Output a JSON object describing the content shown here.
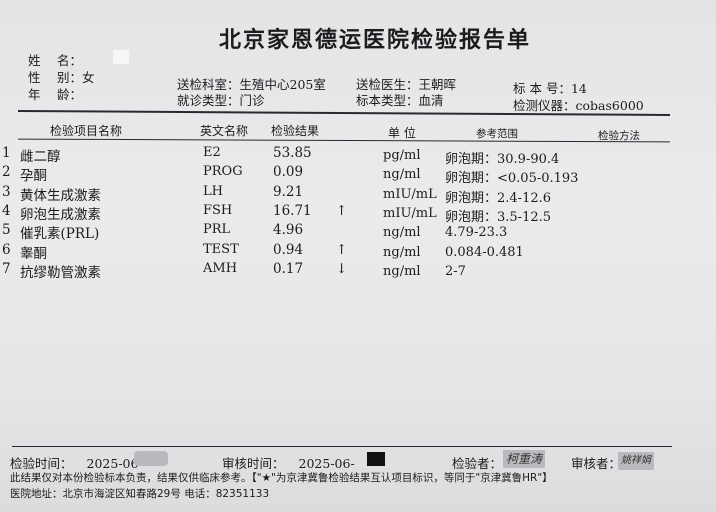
{
  "title": "北京家恩德运医院检验报告单",
  "patient": {
    "name_label": "姓　 名：",
    "name": "",
    "sex_label": "性　 别：",
    "sex": "女",
    "age_label": "年　 龄：",
    "age": ""
  },
  "order": {
    "dept_label": "送检科室：",
    "dept": "生殖中心205室",
    "visit_label": "就诊类型：",
    "visit": "门诊",
    "doctor_label": "送检医生：",
    "doctor": "王朝晖",
    "specimen_type_label": "标本类型：",
    "specimen_type": "血清",
    "specimen_no_label": "标 本 号：",
    "specimen_no": "14",
    "instrument_label": "检测仪器：",
    "instrument": "cobas6000"
  },
  "table": {
    "headers": {
      "name": "检验项目名称",
      "eng": "英文名称",
      "result": "检验结果",
      "unit": "单 位",
      "ref": "参考范围",
      "method": "检验方法"
    },
    "rows": [
      {
        "no": "1",
        "name": "雌二醇",
        "eng": "E2",
        "result": "53.85",
        "flag": "",
        "unit": "pg/ml",
        "ref": "卵泡期：30.9-90.4"
      },
      {
        "no": "2",
        "name": "孕酮",
        "eng": "PROG",
        "result": "0.09",
        "flag": "",
        "unit": "ng/ml",
        "ref": "卵泡期：<0.05-0.193"
      },
      {
        "no": "3",
        "name": "黄体生成激素",
        "eng": "LH",
        "result": "9.21",
        "flag": "",
        "unit": "mIU/mL",
        "ref": "卵泡期：2.4-12.6"
      },
      {
        "no": "4",
        "name": "卵泡生成激素",
        "eng": "FSH",
        "result": "16.71",
        "flag": "↑",
        "unit": "mIU/mL",
        "ref": "卵泡期：3.5-12.5"
      },
      {
        "no": "5",
        "name": "催乳素(PRL)",
        "eng": "PRL",
        "result": "4.96",
        "flag": "",
        "unit": "ng/ml",
        "ref": "4.79-23.3"
      },
      {
        "no": "6",
        "name": "睾酮",
        "eng": "TEST",
        "result": "0.94",
        "flag": "↑",
        "unit": "ng/ml",
        "ref": "0.084-0.481"
      },
      {
        "no": "7",
        "name": "抗缪勒管激素",
        "eng": "AMH",
        "result": "0.17",
        "flag": "↓",
        "unit": "ng/ml",
        "ref": "2-7"
      }
    ]
  },
  "footer": {
    "test_time_label": "检验时间：",
    "test_time": "2025-06-",
    "review_time_label": "审核时间：",
    "review_time": "2025-06-",
    "tester_label": "检验者：",
    "tester": "柯重涛",
    "reviewer_label": "审核者：",
    "reviewer": "姚祥娟",
    "disclaimer": "此结果仅对本份检验标本负责，结果仅供临床参考。【\"★\"为京津冀鲁检验结果互认项目标识，等同于\"京津冀鲁HR\"】",
    "address": "医院地址：北京市海淀区知春路29号 电话：82351133"
  }
}
